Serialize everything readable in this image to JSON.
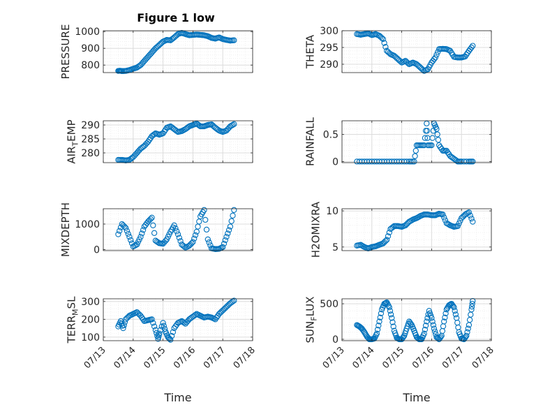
{
  "figure": {
    "title": "Figure 1 low"
  },
  "colors": {
    "marker": "#0072BD",
    "axis": "#262626",
    "grid": "#dcdcdc",
    "minor_grid": "#ececec"
  },
  "chart_data": [
    {
      "id": "pressure",
      "type": "scatter",
      "title": "Figure 1 low",
      "xlabel": "",
      "ylabel": "PRESSURE",
      "xlim": [
        "07/13",
        "07/18"
      ],
      "ylim": [
        755,
        1005
      ],
      "yticks": [
        800,
        900,
        1000
      ],
      "xticks": [
        "07/13",
        "07/14",
        "07/15",
        "07/16",
        "07/17",
        "07/18"
      ],
      "grid": true,
      "series": [
        {
          "x": [
            "07/13 12:00",
            "07/13 13:30",
            "07/13 15:00",
            "07/13 18:00",
            "07/13 21:00",
            "07/14 00:00",
            "07/14 03:00",
            "07/14 06:00",
            "07/14 09:00",
            "07/14 12:00",
            "07/14 15:00",
            "07/14 18:00",
            "07/14 21:00",
            "07/15 00:00",
            "07/15 03:00",
            "07/15 06:00",
            "07/15 09:00",
            "07/15 12:00",
            "07/15 15:00",
            "07/15 18:00",
            "07/15 21:00",
            "07/16 00:00",
            "07/16 03:00",
            "07/16 06:00",
            "07/16 09:00",
            "07/16 12:00",
            "07/16 15:00",
            "07/16 18:00",
            "07/16 21:00",
            "07/17 00:00",
            "07/17 03:00",
            "07/17 06:00",
            "07/17 09:00"
          ],
          "y": [
            765,
            766,
            764,
            765,
            770,
            778,
            785,
            800,
            825,
            850,
            875,
            900,
            920,
            940,
            950,
            948,
            965,
            985,
            992,
            985,
            978,
            980,
            982,
            980,
            978,
            972,
            962,
            958,
            965,
            955,
            950,
            946,
            948
          ]
        }
      ]
    },
    {
      "id": "theta",
      "type": "scatter",
      "xlabel": "",
      "ylabel": "THETA",
      "xlim": [
        "07/13",
        "07/18"
      ],
      "ylim": [
        287.5,
        300
      ],
      "yticks": [
        290,
        295,
        300
      ],
      "xticks": [
        "07/13",
        "07/14",
        "07/15",
        "07/16",
        "07/17",
        "07/18"
      ],
      "grid": true,
      "series": [
        {
          "x": [
            "07/13 12:00",
            "07/13 15:00",
            "07/13 18:00",
            "07/13 21:00",
            "07/14 00:00",
            "07/14 03:00",
            "07/14 06:00",
            "07/14 09:00",
            "07/14 12:00",
            "07/14 15:00",
            "07/14 18:00",
            "07/14 21:00",
            "07/15 00:00",
            "07/15 03:00",
            "07/15 06:00",
            "07/15 09:00",
            "07/15 12:00",
            "07/15 15:00",
            "07/15 18:00",
            "07/15 21:00",
            "07/16 00:00",
            "07/16 03:00",
            "07/16 06:00",
            "07/16 09:00",
            "07/16 12:00",
            "07/16 15:00",
            "07/16 18:00",
            "07/16 21:00",
            "07/17 00:00",
            "07/17 03:00",
            "07/17 06:00",
            "07/17 09:00"
          ],
          "y": [
            299,
            298.8,
            299,
            299.2,
            298.7,
            299,
            298.5,
            297.5,
            294,
            293,
            292.5,
            291.5,
            290.5,
            291,
            290,
            290.5,
            290,
            289,
            288,
            288.5,
            290.5,
            292,
            294.5,
            294.6,
            294.5,
            294,
            292.2,
            292,
            292,
            292.3,
            294,
            295.5
          ]
        }
      ]
    },
    {
      "id": "air_temp",
      "type": "scatter",
      "xlabel": "",
      "ylabel": "AIR_TEMP",
      "ylabel_display": {
        "base": "AIR",
        "sub": "T",
        "rest": "EMP"
      },
      "xlim": [
        "07/13",
        "07/18"
      ],
      "ylim": [
        276.5,
        291.5
      ],
      "yticks": [
        280,
        285,
        290
      ],
      "xticks": [
        "07/13",
        "07/14",
        "07/15",
        "07/16",
        "07/17",
        "07/18"
      ],
      "grid": true,
      "series": [
        {
          "x": [
            "07/13 12:00",
            "07/13 15:00",
            "07/13 18:00",
            "07/13 21:00",
            "07/14 00:00",
            "07/14 03:00",
            "07/14 06:00",
            "07/14 09:00",
            "07/14 12:00",
            "07/14 15:00",
            "07/14 18:00",
            "07/14 21:00",
            "07/15 00:00",
            "07/15 03:00",
            "07/15 06:00",
            "07/15 09:00",
            "07/15 12:00",
            "07/15 15:00",
            "07/15 18:00",
            "07/15 21:00",
            "07/16 00:00",
            "07/16 03:00",
            "07/16 06:00",
            "07/16 09:00",
            "07/16 12:00",
            "07/16 15:00",
            "07/16 18:00",
            "07/16 21:00",
            "07/17 00:00",
            "07/17 03:00",
            "07/17 06:00",
            "07/17 09:00"
          ],
          "y": [
            277.5,
            277.5,
            277.3,
            277.5,
            278.5,
            280,
            281.5,
            282.5,
            284,
            286,
            287,
            286.5,
            287,
            289,
            289.5,
            288.5,
            287.5,
            287.8,
            288.5,
            289.5,
            290,
            290.5,
            289.5,
            289.5,
            290,
            290.2,
            289,
            288,
            287.5,
            288,
            289.5,
            290.3
          ]
        }
      ]
    },
    {
      "id": "rainfall",
      "type": "scatter",
      "xlabel": "",
      "ylabel": "RAINFALL",
      "xlim": [
        "07/13",
        "07/18"
      ],
      "ylim": [
        -0.02,
        0.75
      ],
      "yticks": [
        0,
        0.5
      ],
      "xticks": [
        "07/13",
        "07/14",
        "07/15",
        "07/16",
        "07/17",
        "07/18"
      ],
      "grid": true,
      "series": [
        {
          "x": [
            "07/13 12:00",
            "07/13 18:00",
            "07/14 00:00",
            "07/14 06:00",
            "07/14 12:00",
            "07/14 18:00",
            "07/15 00:00",
            "07/15 06:00",
            "07/15 10:00",
            "07/15 12:00",
            "07/15 15:00",
            "07/15 18:00",
            "07/15 20:00",
            "07/15 21:00",
            "07/16 00:00",
            "07/16 02:00",
            "07/16 04:00",
            "07/16 06:00",
            "07/16 09:00",
            "07/16 12:00",
            "07/16 15:00",
            "07/16 18:00",
            "07/16 21:00",
            "07/17 00:00",
            "07/17 06:00",
            "07/17 09:00"
          ],
          "y": [
            0,
            0,
            0,
            0,
            0,
            0,
            0,
            0,
            0,
            0.3,
            0.3,
            0.3,
            0.7,
            0.3,
            0.3,
            0.7,
            0.6,
            0.3,
            0.2,
            0.2,
            0.1,
            0.05,
            0,
            0,
            0,
            0
          ]
        }
      ]
    },
    {
      "id": "mixdepth",
      "type": "scatter",
      "xlabel": "",
      "ylabel": "MIXDEPTH",
      "xlim": [
        "07/13",
        "07/18"
      ],
      "ylim": [
        -40,
        1600
      ],
      "yticks": [
        0,
        1000
      ],
      "xticks": [
        "07/13",
        "07/14",
        "07/15",
        "07/16",
        "07/17",
        "07/18"
      ],
      "grid": true,
      "series": [
        {
          "x": [
            "07/13 12:00",
            "07/13 15:00",
            "07/13 18:00",
            "07/13 21:00",
            "07/14 00:00",
            "07/14 03:00",
            "07/14 06:00",
            "07/14 09:00",
            "07/14 12:00",
            "07/14 15:00",
            "07/14 18:00",
            "07/14 21:00",
            "07/15 00:00",
            "07/15 03:00",
            "07/15 06:00",
            "07/15 09:00",
            "07/15 12:00",
            "07/15 15:00",
            "07/15 18:00",
            "07/15 21:00",
            "07/16 00:00",
            "07/16 03:00",
            "07/16 06:00",
            "07/16 09:00",
            "07/16 12:00",
            "07/16 15:00",
            "07/16 18:00",
            "07/16 21:00",
            "07/17 00:00",
            "07/17 03:00",
            "07/17 06:00",
            "07/17 09:00"
          ],
          "y": [
            600,
            1000,
            850,
            500,
            120,
            200,
            500,
            900,
            1100,
            1250,
            350,
            250,
            230,
            400,
            700,
            950,
            600,
            200,
            80,
            150,
            300,
            700,
            1300,
            1550,
            400,
            50,
            20,
            30,
            100,
            500,
            900,
            1550
          ]
        }
      ]
    },
    {
      "id": "h2omixra",
      "type": "scatter",
      "xlabel": "",
      "ylabel": "H2OMIXRA",
      "xlim": [
        "07/13",
        "07/18"
      ],
      "ylim": [
        4.5,
        10.3
      ],
      "yticks": [
        5,
        10
      ],
      "xticks": [
        "07/13",
        "07/14",
        "07/15",
        "07/16",
        "07/17",
        "07/18"
      ],
      "grid": true,
      "series": [
        {
          "x": [
            "07/13 12:00",
            "07/13 15:00",
            "07/13 18:00",
            "07/13 21:00",
            "07/14 00:00",
            "07/14 03:00",
            "07/14 06:00",
            "07/14 09:00",
            "07/14 12:00",
            "07/14 15:00",
            "07/14 18:00",
            "07/14 21:00",
            "07/15 00:00",
            "07/15 03:00",
            "07/15 06:00",
            "07/15 09:00",
            "07/15 12:00",
            "07/15 15:00",
            "07/15 18:00",
            "07/15 21:00",
            "07/16 00:00",
            "07/16 03:00",
            "07/16 06:00",
            "07/16 09:00",
            "07/16 12:00",
            "07/16 15:00",
            "07/16 18:00",
            "07/16 21:00",
            "07/17 00:00",
            "07/17 03:00",
            "07/17 06:00",
            "07/17 09:00"
          ],
          "y": [
            5.2,
            5.3,
            5.0,
            4.8,
            5.0,
            5.1,
            5.3,
            5.5,
            6.0,
            7.5,
            7.9,
            7.9,
            7.8,
            8.0,
            8.5,
            8.8,
            9.0,
            9.3,
            9.5,
            9.5,
            9.4,
            9.4,
            9.6,
            9.5,
            8.3,
            8.0,
            7.8,
            7.9,
            9.0,
            9.5,
            9.8,
            8.5
          ]
        }
      ]
    },
    {
      "id": "terr_msl",
      "type": "scatter",
      "xlabel": "Time",
      "ylabel": "TERR_MSL",
      "ylabel_display": {
        "base": "TERR",
        "sub": "M",
        "rest": "SL"
      },
      "xlim": [
        "07/13",
        "07/18"
      ],
      "ylim": [
        80,
        315
      ],
      "yticks": [
        100,
        200,
        300
      ],
      "xticks": [
        "07/13",
        "07/14",
        "07/15",
        "07/16",
        "07/17",
        "07/18"
      ],
      "grid": true,
      "series": [
        {
          "x": [
            "07/13 12:00",
            "07/13 14:00",
            "07/13 16:00",
            "07/13 18:00",
            "07/13 21:00",
            "07/14 00:00",
            "07/14 03:00",
            "07/14 06:00",
            "07/14 09:00",
            "07/14 12:00",
            "07/14 15:00",
            "07/14 18:00",
            "07/14 20:00",
            "07/14 21:00",
            "07/15 00:00",
            "07/15 02:00",
            "07/15 04:00",
            "07/15 06:00",
            "07/15 09:00",
            "07/15 12:00",
            "07/15 15:00",
            "07/15 18:00",
            "07/15 21:00",
            "07/16 00:00",
            "07/16 03:00",
            "07/16 06:00",
            "07/16 09:00",
            "07/16 12:00",
            "07/16 15:00",
            "07/16 18:00",
            "07/16 21:00",
            "07/17 00:00",
            "07/17 03:00",
            "07/17 06:00",
            "07/17 09:00"
          ],
          "y": [
            160,
            190,
            150,
            200,
            220,
            230,
            240,
            220,
            190,
            195,
            200,
            140,
            90,
            120,
            180,
            130,
            100,
            85,
            150,
            180,
            190,
            175,
            200,
            215,
            230,
            220,
            210,
            215,
            210,
            200,
            230,
            250,
            270,
            290,
            305
          ]
        }
      ]
    },
    {
      "id": "sun_flux",
      "type": "scatter",
      "xlabel": "Time",
      "ylabel": "SUN_FLUX",
      "ylabel_display": {
        "base": "SUN",
        "sub": "F",
        "rest": "LUX"
      },
      "xlim": [
        "07/13",
        "07/18"
      ],
      "ylim": [
        -20,
        570
      ],
      "yticks": [
        0,
        500
      ],
      "xticks": [
        "07/13",
        "07/14",
        "07/15",
        "07/16",
        "07/17",
        "07/18"
      ],
      "grid": true,
      "series": [
        {
          "x": [
            "07/13 12:00",
            "07/13 14:00",
            "07/13 16:00",
            "07/13 18:00",
            "07/13 20:00",
            "07/13 22:00",
            "07/14 00:00",
            "07/14 02:00",
            "07/14 04:00",
            "07/14 06:00",
            "07/14 08:00",
            "07/14 10:00",
            "07/14 12:00",
            "07/14 14:00",
            "07/14 16:00",
            "07/14 18:00",
            "07/14 20:00",
            "07/14 22:00",
            "07/15 00:00",
            "07/15 02:00",
            "07/15 04:00",
            "07/15 06:00",
            "07/15 08:00",
            "07/15 10:00",
            "07/15 12:00",
            "07/15 14:00",
            "07/15 16:00",
            "07/15 18:00",
            "07/15 20:00",
            "07/15 22:00",
            "07/16 00:00",
            "07/16 02:00",
            "07/16 04:00",
            "07/16 06:00",
            "07/16 08:00",
            "07/16 10:00",
            "07/16 12:00",
            "07/16 14:00",
            "07/16 16:00",
            "07/16 18:00",
            "07/16 20:00",
            "07/16 22:00",
            "07/17 00:00",
            "07/17 02:00",
            "07/17 04:00",
            "07/17 06:00",
            "07/17 08:00",
            "07/17 09:00"
          ],
          "y": [
            200,
            180,
            150,
            100,
            40,
            0,
            0,
            10,
            80,
            250,
            420,
            500,
            520,
            450,
            300,
            120,
            20,
            0,
            0,
            50,
            150,
            250,
            200,
            120,
            30,
            0,
            0,
            80,
            250,
            400,
            300,
            150,
            30,
            0,
            50,
            250,
            420,
            480,
            500,
            450,
            300,
            100,
            10,
            0,
            50,
            200,
            420,
            540
          ]
        }
      ]
    }
  ]
}
